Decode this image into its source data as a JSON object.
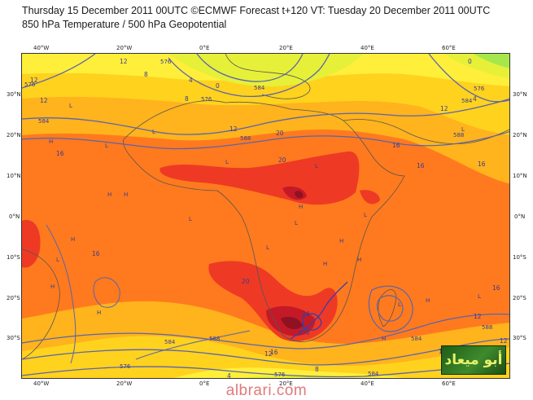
{
  "header": {
    "title_line1": "Thursday 15 December 2011 00UTC ©ECMWF Forecast t+120 VT: Tuesday 20 December 2011 00UTC",
    "title_line2": "850 hPa Temperature / 500 hPa Geopotential"
  },
  "axes": {
    "lon_labels": [
      "40°W",
      "20°W",
      "0°E",
      "20°E",
      "40°E",
      "60°E"
    ],
    "lat_labels": [
      "30°N",
      "20°N",
      "10°N",
      "0°N",
      "10°S",
      "20°S",
      "30°S"
    ]
  },
  "contour_labels": {
    "temperature": [
      "12",
      "12",
      "8",
      "4",
      "0",
      "12",
      "12",
      "16",
      "20",
      "16",
      "16",
      "16",
      "16",
      "20",
      "24",
      "20",
      "16",
      "12",
      "12",
      "16",
      "8",
      "4",
      "0",
      "12",
      "12",
      "12",
      "4",
      "8",
      "12"
    ],
    "geopotential": [
      "576",
      "584",
      "576",
      "584",
      "576",
      "588",
      "588",
      "584",
      "576",
      "584",
      "588",
      "588",
      "584",
      "576",
      "576",
      "584",
      "576"
    ]
  },
  "pressure_centers": {
    "lows": [
      "L",
      "L",
      "L",
      "L",
      "L",
      "L",
      "L",
      "L",
      "L",
      "L",
      "L",
      "L",
      "L",
      "L"
    ],
    "highs": [
      "H",
      "H",
      "H",
      "H",
      "H",
      "H",
      "H",
      "H",
      "H",
      "H",
      "H",
      "H"
    ]
  },
  "colors": {
    "t0": "#a6e84c",
    "t4": "#e6f038",
    "t8": "#ffef3a",
    "t12": "#ffd21e",
    "t16": "#ffb31c",
    "t20": "#ff7a1e",
    "t24": "#ee3a24",
    "t28": "#c41a28",
    "t32": "#8e1222",
    "geopotential_line": "#5a64ad",
    "coastline": "#555555"
  },
  "logo_text": "أبو ميعاد",
  "watermark": "albrari.com"
}
